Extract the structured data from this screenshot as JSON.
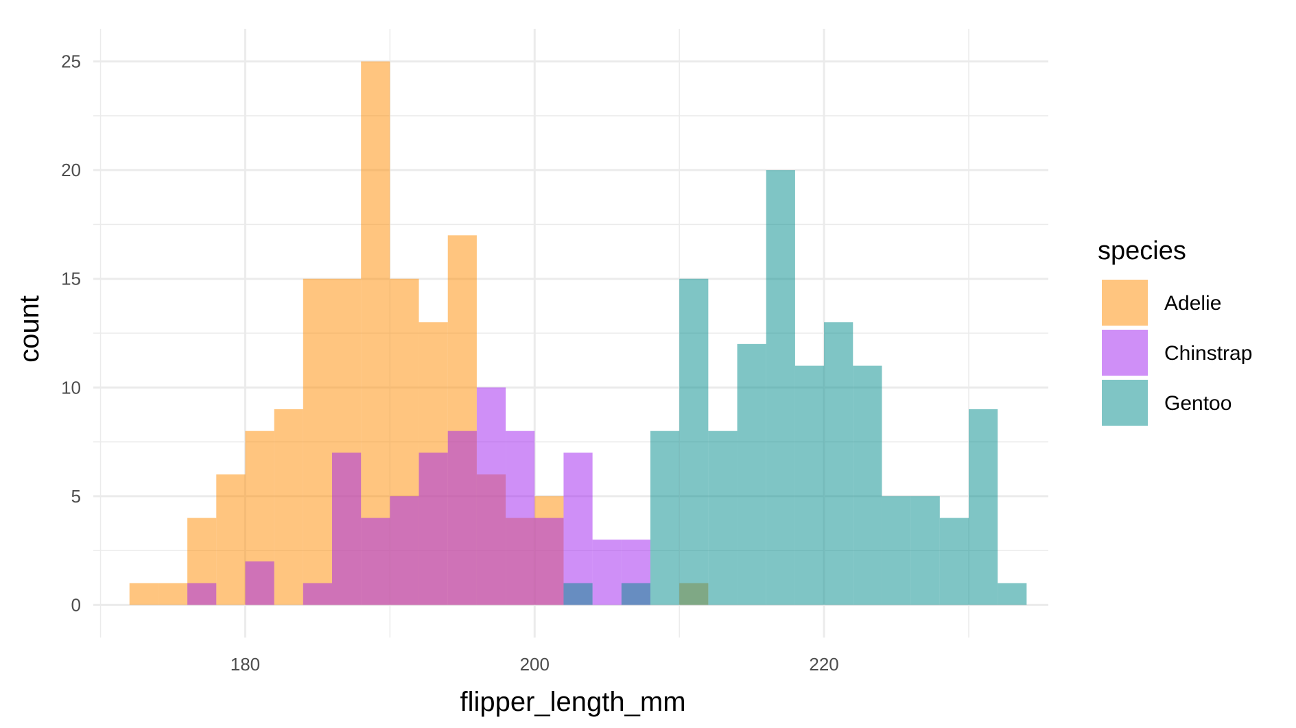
{
  "chart_data": {
    "type": "bar",
    "subtype": "overlapping histogram",
    "xlabel": "flipper_length_mm",
    "ylabel": "count",
    "xlim": [
      169.5,
      235.5
    ],
    "ylim": [
      -1.5,
      26.5
    ],
    "x_ticks": [
      180,
      200,
      220
    ],
    "y_ticks": [
      0,
      5,
      10,
      15,
      20,
      25
    ],
    "grid": true,
    "bin_width": 2,
    "bar_opacity": 0.5,
    "legend": {
      "title": "species",
      "position": "right"
    },
    "series": [
      {
        "name": "Adelie",
        "color": "#FF8C00",
        "bins_start": [
          172,
          174,
          176,
          178,
          180,
          182,
          184,
          186,
          188,
          190,
          192,
          194,
          196,
          198,
          200,
          202,
          204,
          206,
          208,
          210,
          212
        ],
        "counts": [
          1,
          1,
          4,
          6,
          8,
          9,
          15,
          15,
          25,
          15,
          13,
          17,
          6,
          4,
          5,
          0,
          0,
          0,
          0,
          1,
          0
        ]
      },
      {
        "name": "Chinstrap",
        "color": "#A020F0",
        "bins_start": [
          172,
          174,
          176,
          178,
          180,
          182,
          184,
          186,
          188,
          190,
          192,
          194,
          196,
          198,
          200,
          202,
          204,
          206,
          208,
          210,
          212
        ],
        "counts": [
          0,
          0,
          1,
          0,
          2,
          0,
          1,
          7,
          4,
          5,
          7,
          8,
          10,
          8,
          4,
          7,
          3,
          3,
          0,
          0,
          0
        ]
      },
      {
        "name": "Gentoo",
        "color": "#008B8B",
        "bins_start": [
          202,
          204,
          206,
          208,
          210,
          212,
          214,
          216,
          218,
          220,
          222,
          224,
          226,
          228,
          230,
          232
        ],
        "counts": [
          1,
          0,
          1,
          8,
          15,
          8,
          12,
          20,
          11,
          13,
          11,
          5,
          5,
          4,
          9,
          1
        ]
      }
    ]
  }
}
